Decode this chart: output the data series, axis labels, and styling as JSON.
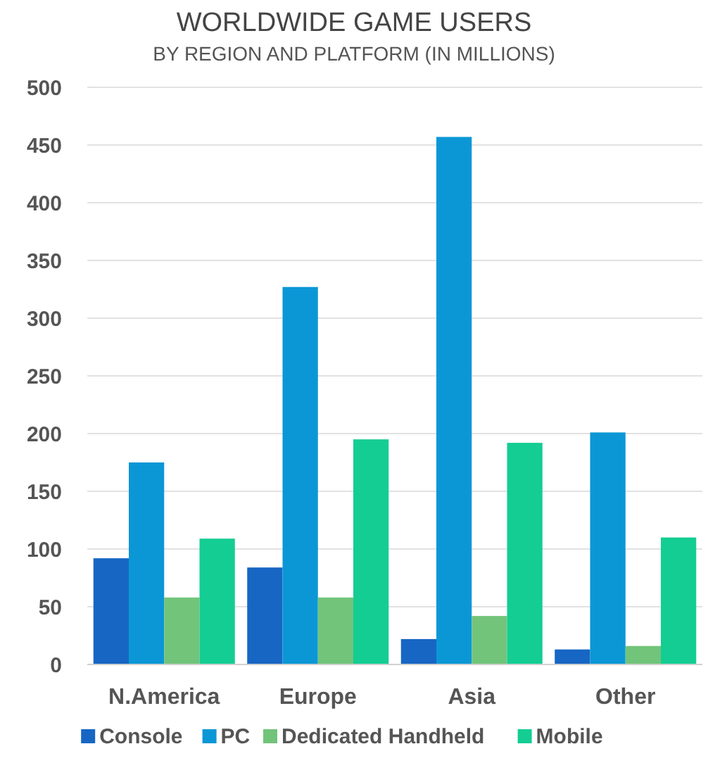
{
  "chart_data": {
    "type": "bar",
    "title": "WORLDWIDE GAME USERS",
    "subtitle": "BY REGION AND PLATFORM (IN MILLIONS)",
    "categories": [
      "N.America",
      "Europe",
      "Asia",
      "Other"
    ],
    "series": [
      {
        "name": "Console",
        "color": "#1766c4",
        "values": [
          92,
          84,
          22,
          13
        ]
      },
      {
        "name": "PC",
        "color": "#0b97d6",
        "values": [
          175,
          327,
          457,
          201
        ]
      },
      {
        "name": "Dedicated Handheld",
        "color": "#72c47a",
        "values": [
          58,
          58,
          42,
          16
        ]
      },
      {
        "name": "Mobile",
        "color": "#14cd92",
        "values": [
          109,
          195,
          192,
          110
        ]
      }
    ],
    "ylim": [
      0,
      500
    ],
    "yticks": [
      0,
      50,
      100,
      150,
      200,
      250,
      300,
      350,
      400,
      450,
      500
    ],
    "grid": "y",
    "legend": "bottom"
  }
}
